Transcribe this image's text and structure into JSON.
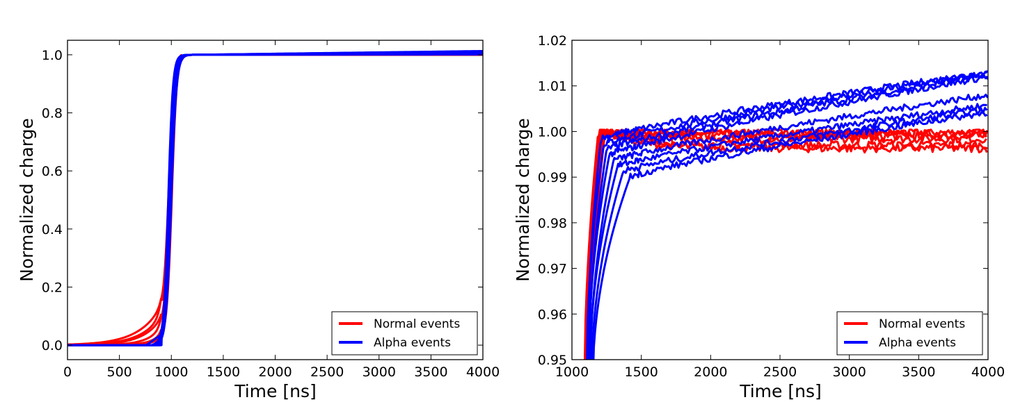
{
  "chart_data": [
    {
      "type": "line",
      "id": "left",
      "xlabel": "Time [ns]",
      "ylabel": "Normalized charge",
      "xlim": [
        0,
        4000
      ],
      "ylim": [
        -0.05,
        1.05
      ],
      "xticks": [
        0,
        500,
        1000,
        1500,
        2000,
        2500,
        3000,
        3500,
        4000
      ],
      "xtick_labels": [
        "0",
        "500",
        "1000",
        "1500",
        "2000",
        "2500",
        "3000",
        "3500",
        "4000"
      ],
      "yticks": [
        0.0,
        0.2,
        0.4,
        0.6,
        0.8,
        1.0
      ],
      "ytick_labels": [
        "0.0",
        "0.2",
        "0.4",
        "0.6",
        "0.8",
        "1.0"
      ],
      "grid": false,
      "legend": {
        "position": "bottom-right",
        "entries": [
          {
            "label": "Normal events",
            "color": "#ff0000"
          },
          {
            "label": "Alpha events",
            "color": "#0000ff"
          }
        ]
      },
      "series": [
        {
          "name": "Normal events",
          "color": "#ff0000",
          "count": 6,
          "description": "slow pre-rise from ~200 ns, steep rise ~950-1100 ns, plateau at 1.00"
        },
        {
          "name": "Alpha events",
          "color": "#0000ff",
          "count": 8,
          "description": "flat until ~700-900 ns, steep rise ~950-1100 ns, plateau ~1.00-1.013"
        }
      ]
    },
    {
      "type": "line",
      "id": "right",
      "xlabel": "Time [ns]",
      "ylabel": "Normalized charge",
      "xlim": [
        1000,
        4000
      ],
      "ylim": [
        0.95,
        1.02
      ],
      "xticks": [
        1000,
        1500,
        2000,
        2500,
        3000,
        3500,
        4000
      ],
      "xtick_labels": [
        "1000",
        "1500",
        "2000",
        "2500",
        "3000",
        "3500",
        "4000"
      ],
      "yticks": [
        0.95,
        0.96,
        0.97,
        0.98,
        0.99,
        1.0,
        1.01,
        1.02
      ],
      "ytick_labels": [
        "0.95",
        "0.96",
        "0.97",
        "0.98",
        "0.99",
        "1.00",
        "1.01",
        "1.02"
      ],
      "grid": false,
      "legend": {
        "position": "bottom-right",
        "entries": [
          {
            "label": "Normal events",
            "color": "#ff0000"
          },
          {
            "label": "Alpha events",
            "color": "#0000ff"
          }
        ]
      },
      "series": [
        {
          "name": "Normal events",
          "color": "#ff0000",
          "count": 6,
          "end_values": [
            0.9998,
            0.9995,
            0.999,
            0.9984,
            0.997,
            0.9963
          ]
        },
        {
          "name": "Alpha events",
          "color": "#0000ff",
          "count": 8,
          "end_values": [
            1.013,
            1.0128,
            1.0124,
            1.012,
            1.008,
            1.0058,
            1.0048,
            1.0042
          ]
        }
      ]
    }
  ]
}
